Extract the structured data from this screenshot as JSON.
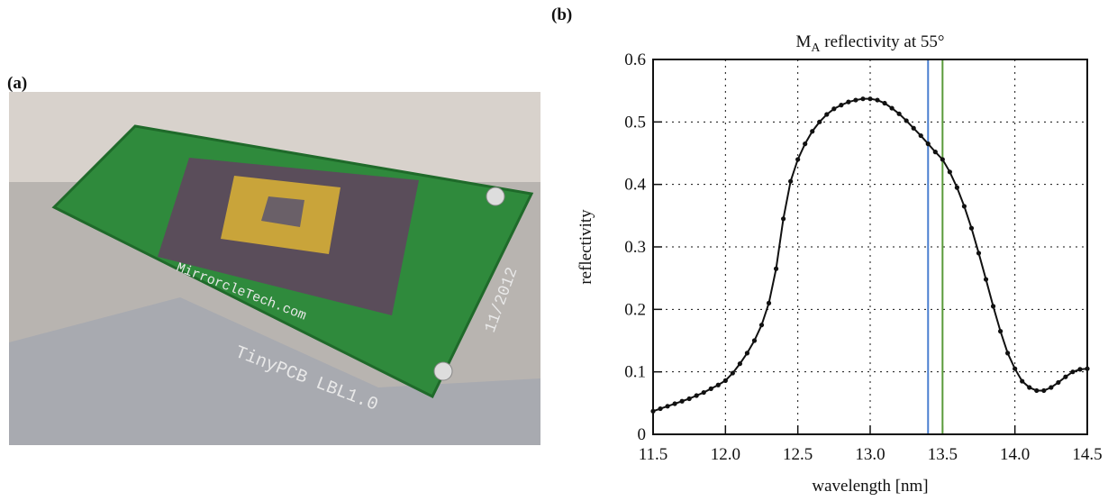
{
  "panel_labels": [
    "(a)",
    "(b)"
  ],
  "photo": {
    "texts": [
      "TinyPCB LBL1.0",
      "MirrorcleTech.com",
      "11/2012"
    ]
  },
  "chart_data": {
    "type": "line",
    "title": {
      "main": "M",
      "subscript": "A",
      "rest": " reflectivity at 55°"
    },
    "x_label": "wavelength [nm]",
    "y_label": "reflectivity",
    "x": [
      11.5,
      11.55,
      11.6,
      11.65,
      11.7,
      11.75,
      11.8,
      11.85,
      11.9,
      11.95,
      12.0,
      12.05,
      12.1,
      12.15,
      12.2,
      12.25,
      12.3,
      12.35,
      12.4,
      12.45,
      12.5,
      12.55,
      12.6,
      12.65,
      12.7,
      12.75,
      12.8,
      12.85,
      12.9,
      12.95,
      13.0,
      13.05,
      13.1,
      13.15,
      13.2,
      13.25,
      13.3,
      13.35,
      13.4,
      13.45,
      13.5,
      13.55,
      13.6,
      13.65,
      13.7,
      13.75,
      13.8,
      13.85,
      13.9,
      13.95,
      14.0,
      14.05,
      14.1,
      14.15,
      14.2,
      14.25,
      14.3,
      14.35,
      14.4,
      14.45,
      14.5
    ],
    "series": [
      {
        "color": "#111111",
        "values": [
          0.037,
          0.041,
          0.045,
          0.049,
          0.053,
          0.057,
          0.062,
          0.067,
          0.073,
          0.079,
          0.086,
          0.098,
          0.113,
          0.13,
          0.15,
          0.175,
          0.21,
          0.265,
          0.345,
          0.405,
          0.44,
          0.465,
          0.485,
          0.5,
          0.512,
          0.521,
          0.527,
          0.532,
          0.535,
          0.537,
          0.537,
          0.535,
          0.53,
          0.522,
          0.513,
          0.502,
          0.49,
          0.478,
          0.465,
          0.452,
          0.44,
          0.42,
          0.395,
          0.365,
          0.33,
          0.29,
          0.248,
          0.205,
          0.165,
          0.13,
          0.105,
          0.085,
          0.075,
          0.07,
          0.07,
          0.075,
          0.083,
          0.092,
          0.1,
          0.104,
          0.105
        ]
      }
    ],
    "markers": [
      {
        "x": 13.4,
        "color": "#4a7fd0"
      },
      {
        "x": 13.5,
        "color": "#5a9a3a"
      }
    ],
    "xlim": [
      11.5,
      14.5
    ],
    "xticks": [
      11.5,
      {
        "value": 12,
        "label": "12.0"
      },
      12.5,
      {
        "value": 13,
        "label": "13.0"
      },
      13.5,
      {
        "value": 14,
        "label": "14.0"
      },
      14.5
    ],
    "ylim": [
      0,
      0.6
    ],
    "yticks": [
      0,
      0.1,
      0.2,
      0.3,
      0.4,
      0.5,
      0.6
    ],
    "grid": true
  }
}
